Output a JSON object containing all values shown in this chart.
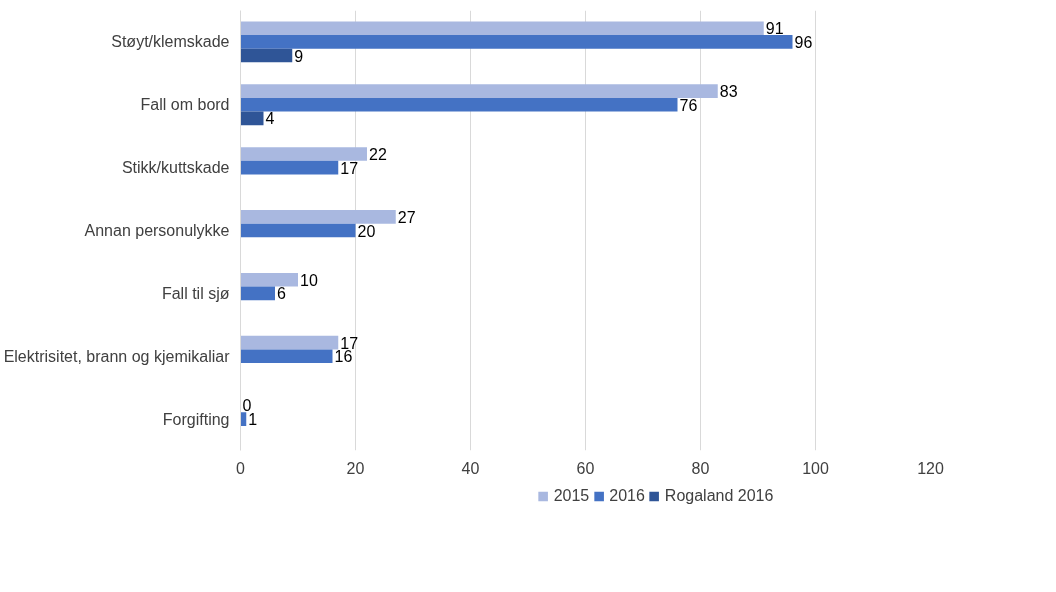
{
  "chart_data": {
    "type": "bar",
    "orientation": "horizontal",
    "categories": [
      "Støyt/klemskade",
      "Fall om bord",
      "Stikk/kuttskade",
      "Annan personulykke",
      "Fall til sjø",
      "Elektrisitet, brann og kjemikaliar",
      "Forgifting"
    ],
    "series": [
      {
        "name": "2015",
        "color": "#a9b8e0",
        "values": [
          91,
          83,
          22,
          27,
          10,
          17,
          0
        ]
      },
      {
        "name": "2016",
        "color": "#4472c4",
        "values": [
          96,
          76,
          17,
          20,
          6,
          16,
          1
        ]
      },
      {
        "name": "Rogaland 2016",
        "color": "#2f5597",
        "values": [
          9,
          4,
          null,
          null,
          null,
          null,
          null
        ]
      }
    ],
    "xlim": [
      0,
      120
    ],
    "xticks": [
      0,
      20,
      40,
      60,
      80,
      100,
      120
    ],
    "grid": "x",
    "legend": "bottom",
    "data_labels": true
  }
}
